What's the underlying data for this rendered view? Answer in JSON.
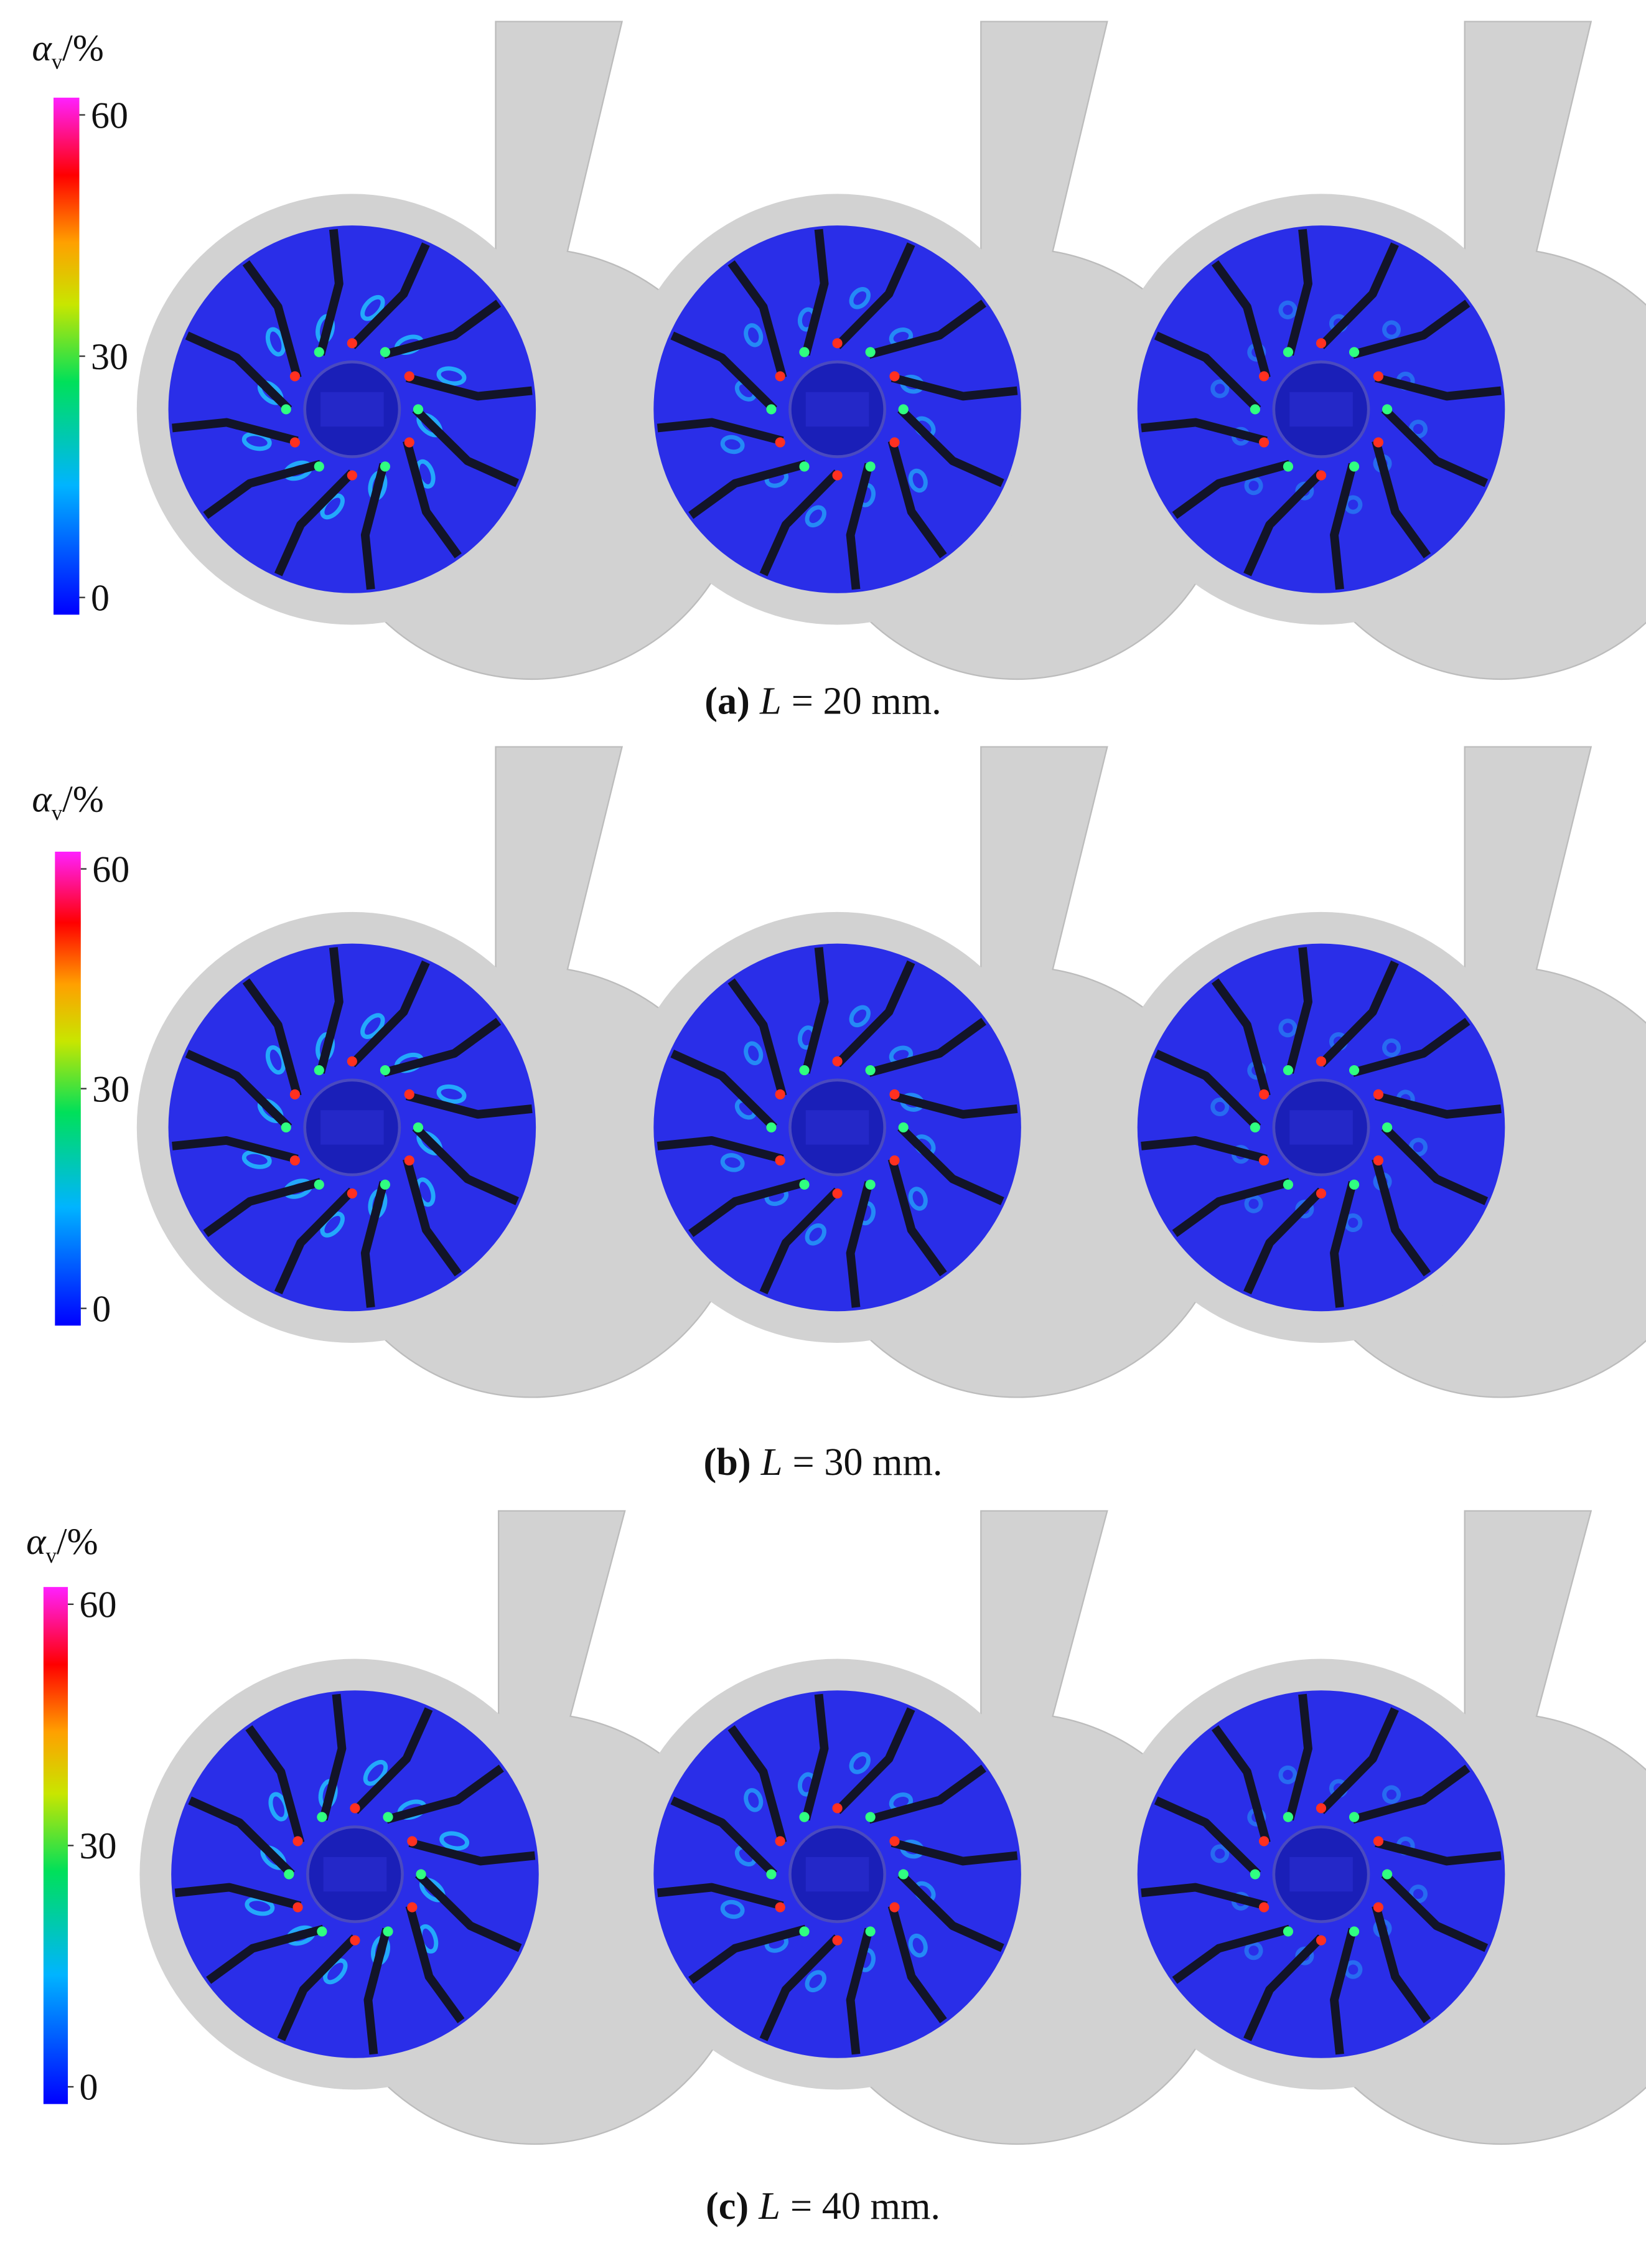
{
  "panels": [
    {
      "colorbar": {
        "symbol": "α",
        "subscript": "v",
        "unit": "/%",
        "range": [
          0,
          60
        ],
        "ticks": [
          60,
          30,
          0
        ]
      },
      "caption": {
        "label": "(a)",
        "variable": "L",
        "rest": "= 20 mm."
      }
    },
    {
      "colorbar": {
        "symbol": "α",
        "subscript": "v",
        "unit": "/%",
        "range": [
          0,
          60
        ],
        "ticks": [
          60,
          30,
          0
        ]
      },
      "caption": {
        "label": "(b)",
        "variable": "L",
        "rest": "= 30 mm."
      }
    },
    {
      "colorbar": {
        "symbol": "α",
        "subscript": "v",
        "unit": "/%",
        "range": [
          0,
          60
        ],
        "ticks": [
          60,
          30,
          0
        ]
      },
      "caption": {
        "label": "(c)",
        "variable": "L",
        "rest": "= 40 mm."
      }
    }
  ]
}
